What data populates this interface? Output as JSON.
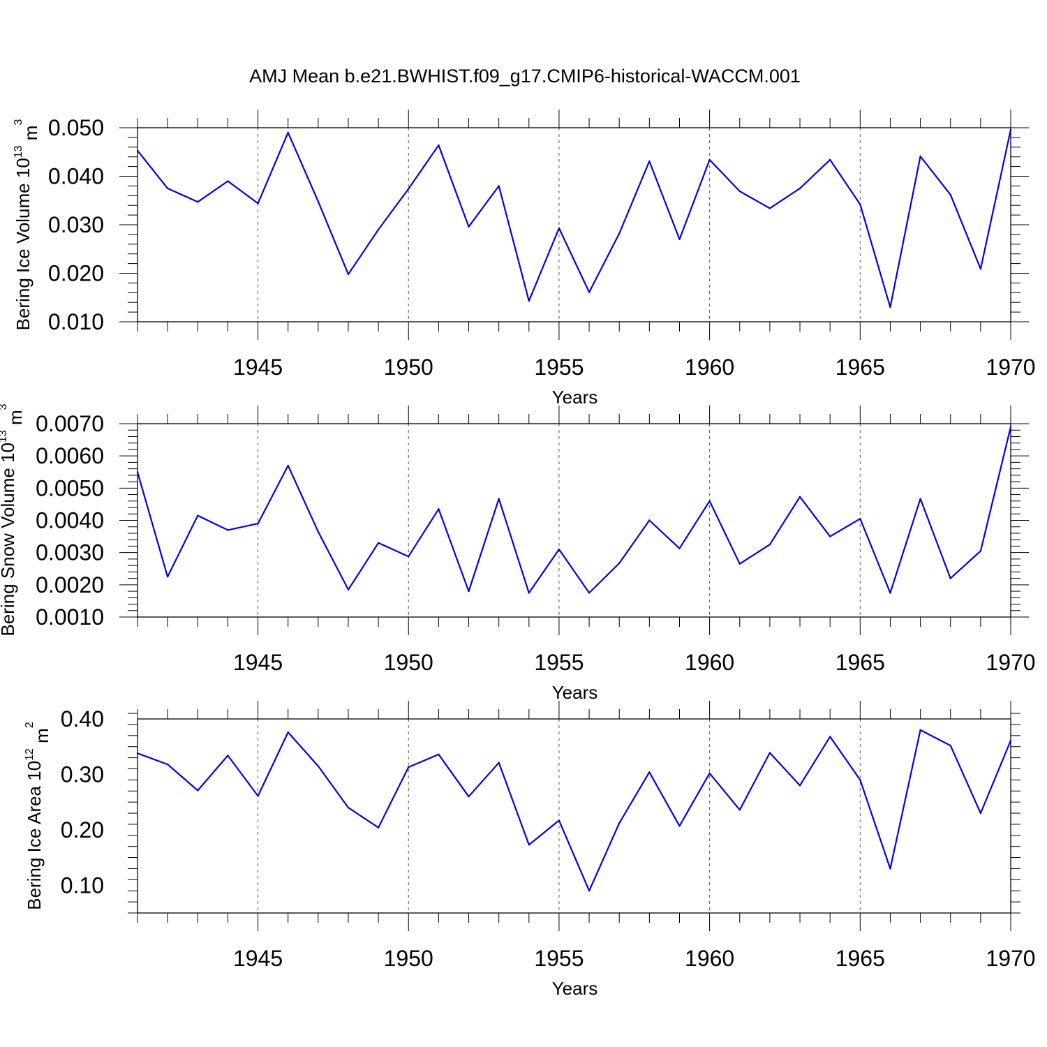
{
  "title": "AMJ Mean b.e21.BWHIST.f09_g17.CMIP6-historical-WACCM.001",
  "series_color": "#0000ee",
  "chart_data": [
    {
      "type": "line",
      "ylabel": "Bering Ice Volume 10",
      "ylabel_exp": "13",
      "ylabel_unit": " m",
      "ylabel_unit_exp": "3",
      "xlabel": "Years",
      "x": [
        1941,
        1942,
        1943,
        1944,
        1945,
        1946,
        1947,
        1948,
        1949,
        1950,
        1951,
        1952,
        1953,
        1954,
        1955,
        1956,
        1957,
        1958,
        1959,
        1960,
        1961,
        1962,
        1963,
        1964,
        1965,
        1966,
        1967,
        1968,
        1969,
        1970
      ],
      "values": [
        0.0453,
        0.0375,
        0.0347,
        0.039,
        0.0344,
        0.049,
        0.0348,
        0.0198,
        0.029,
        0.0374,
        0.0464,
        0.0296,
        0.038,
        0.0143,
        0.0293,
        0.0161,
        0.0282,
        0.0431,
        0.027,
        0.0434,
        0.0369,
        0.0334,
        0.0375,
        0.0434,
        0.0342,
        0.013,
        0.0441,
        0.0362,
        0.0209,
        0.0496
      ],
      "ylim": [
        0.01,
        0.05
      ],
      "xlim": [
        1941,
        1970
      ],
      "yticks": [
        0.01,
        0.02,
        0.03,
        0.04,
        0.05
      ],
      "ytick_labels": [
        "0.010",
        "0.020",
        "0.030",
        "0.040",
        "0.050"
      ],
      "xticks": [
        1945,
        1950,
        1955,
        1960,
        1965,
        1970
      ],
      "xtick_labels": [
        "1945",
        "1950",
        "1955",
        "1960",
        "1965",
        "1970"
      ]
    },
    {
      "type": "line",
      "ylabel": "Bering Snow Volume 10",
      "ylabel_exp": "13",
      "ylabel_unit": " m",
      "ylabel_unit_exp": "3",
      "xlabel": "Years",
      "x": [
        1941,
        1942,
        1943,
        1944,
        1945,
        1946,
        1947,
        1948,
        1949,
        1950,
        1951,
        1952,
        1953,
        1954,
        1955,
        1956,
        1957,
        1958,
        1959,
        1960,
        1961,
        1962,
        1963,
        1964,
        1965,
        1966,
        1967,
        1968,
        1969,
        1970
      ],
      "values": [
        0.0055,
        0.00225,
        0.00415,
        0.0037,
        0.0039,
        0.0057,
        0.00365,
        0.00185,
        0.0033,
        0.00288,
        0.00435,
        0.0018,
        0.00467,
        0.00175,
        0.0031,
        0.00175,
        0.00267,
        0.004,
        0.00313,
        0.0046,
        0.00265,
        0.00325,
        0.00473,
        0.0035,
        0.00405,
        0.00175,
        0.00467,
        0.0022,
        0.00305,
        0.0069
      ],
      "ylim": [
        0.001,
        0.007
      ],
      "xlim": [
        1941,
        1970
      ],
      "yticks": [
        0.001,
        0.002,
        0.003,
        0.004,
        0.005,
        0.006,
        0.007
      ],
      "ytick_labels": [
        "0.0010",
        "0.0020",
        "0.0030",
        "0.0040",
        "0.0050",
        "0.0060",
        "0.0070"
      ],
      "xticks": [
        1945,
        1950,
        1955,
        1960,
        1965,
        1970
      ],
      "xtick_labels": [
        "1945",
        "1950",
        "1955",
        "1960",
        "1965",
        "1970"
      ]
    },
    {
      "type": "line",
      "ylabel": "Bering Ice Area 10",
      "ylabel_exp": "12",
      "ylabel_unit": " m",
      "ylabel_unit_exp": "2",
      "xlabel": "Years",
      "x": [
        1941,
        1942,
        1943,
        1944,
        1945,
        1946,
        1947,
        1948,
        1949,
        1950,
        1951,
        1952,
        1953,
        1954,
        1955,
        1956,
        1957,
        1958,
        1959,
        1960,
        1961,
        1962,
        1963,
        1964,
        1965,
        1966,
        1967,
        1968,
        1969,
        1970
      ],
      "values": [
        0.338,
        0.318,
        0.271,
        0.334,
        0.261,
        0.376,
        0.315,
        0.24,
        0.204,
        0.313,
        0.336,
        0.26,
        0.321,
        0.173,
        0.217,
        0.09,
        0.212,
        0.304,
        0.207,
        0.302,
        0.236,
        0.339,
        0.28,
        0.368,
        0.29,
        0.13,
        0.38,
        0.352,
        0.23,
        0.361
      ],
      "ylim": [
        0.05,
        0.4
      ],
      "xlim": [
        1941,
        1970
      ],
      "yticks": [
        0.1,
        0.2,
        0.3,
        0.4
      ],
      "ytick_labels": [
        "0.10",
        "0.20",
        "0.30",
        "0.40"
      ],
      "xticks": [
        1945,
        1950,
        1955,
        1960,
        1965,
        1970
      ],
      "xtick_labels": [
        "1945",
        "1950",
        "1955",
        "1960",
        "1965",
        "1970"
      ]
    }
  ]
}
